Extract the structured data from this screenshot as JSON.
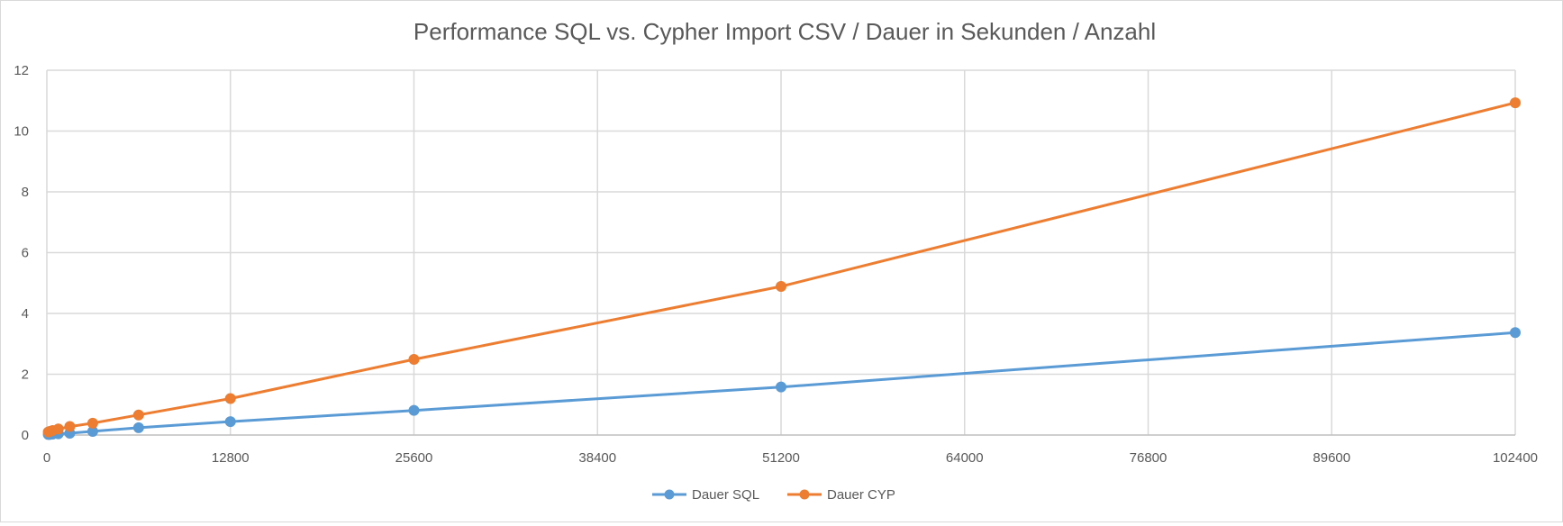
{
  "chart_data": {
    "type": "line",
    "title": "Performance SQL vs. Cypher Import CSV / Dauer in Sekunden / Anzahl",
    "xlabel": "",
    "ylabel": "",
    "xlim": [
      0,
      102400
    ],
    "ylim": [
      0,
      12
    ],
    "x_ticks": [
      0,
      12800,
      25600,
      38400,
      51200,
      64000,
      76800,
      89600,
      102400
    ],
    "y_ticks": [
      0,
      2,
      4,
      6,
      8,
      10,
      12
    ],
    "grid": true,
    "legend_position": "bottom",
    "x": [
      100,
      200,
      400,
      800,
      1600,
      3200,
      6400,
      12800,
      25600,
      51200,
      102400
    ],
    "series": [
      {
        "name": "Dauer SQL",
        "color": "#5b9bd5",
        "values": [
          0.02,
          0.02,
          0.03,
          0.04,
          0.06,
          0.12,
          0.24,
          0.44,
          0.81,
          1.58,
          3.37
        ]
      },
      {
        "name": "Dauer CYP",
        "color": "#ed7d31",
        "values": [
          0.1,
          0.12,
          0.15,
          0.2,
          0.28,
          0.39,
          0.66,
          1.2,
          2.49,
          4.89,
          10.93
        ]
      }
    ]
  }
}
